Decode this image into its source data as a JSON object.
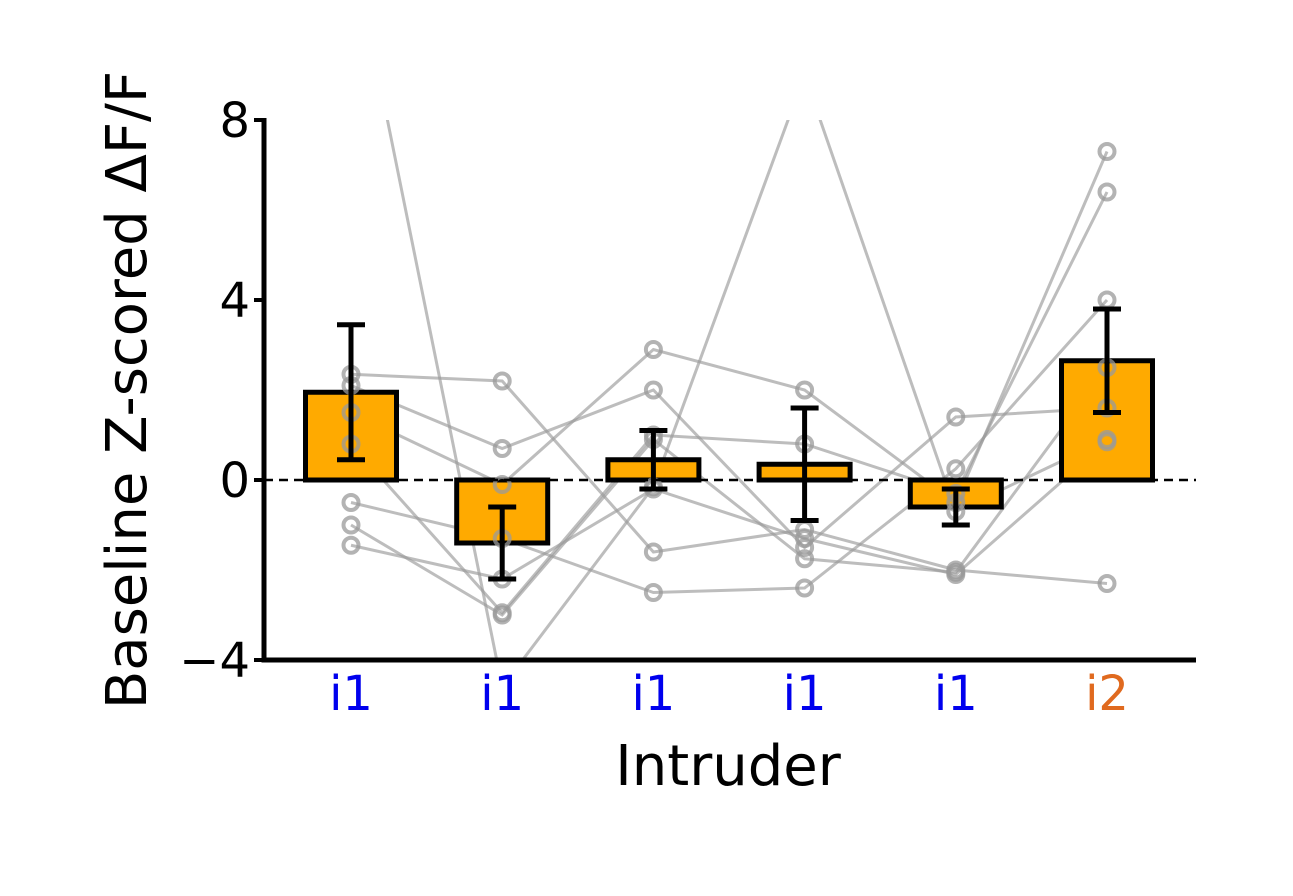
{
  "chart_data": {
    "type": "bar",
    "xlabel": "Intruder",
    "ylabel": "Baseline Z-scored ΔF/F",
    "ylim": [
      -4,
      8
    ],
    "yticks": [
      {
        "value": -4,
        "label": "−4"
      },
      {
        "value": 0,
        "label": "0"
      },
      {
        "value": 4,
        "label": "4"
      },
      {
        "value": 8,
        "label": "8"
      }
    ],
    "categories": [
      "i1",
      "i1",
      "i1",
      "i1",
      "i1",
      "i2"
    ],
    "category_colors": [
      "#0000ee",
      "#0000ee",
      "#0000ee",
      "#0000ee",
      "#0000ee",
      "#e06a1f"
    ],
    "bar_color": "#ffaa00",
    "bar_edge_color": "#000000",
    "means": [
      1.95,
      -1.4,
      0.45,
      0.35,
      -0.6,
      2.65
    ],
    "errors": [
      1.5,
      0.8,
      0.65,
      1.25,
      0.4,
      1.15
    ],
    "zero_line": "dashed",
    "subject_line_color": "#999999",
    "subjects": [
      [
        2.35,
        2.2,
        -1.6,
        -1.1,
        -2.0,
        -2.3
      ],
      [
        2.1,
        0.7,
        2.0,
        -1.5,
        1.4,
        1.6
      ],
      [
        1.5,
        -0.1,
        2.9,
        2.0,
        -0.5,
        7.3
      ],
      [
        0.8,
        -2.95,
        1.0,
        0.8,
        -0.3,
        6.4
      ],
      [
        -0.5,
        -1.3,
        -2.5,
        -2.4,
        0.25,
        4.0
      ],
      [
        -1.0,
        -3.0,
        0.9,
        -1.75,
        -2.05,
        2.5
      ],
      [
        -1.45,
        -2.2,
        -0.2,
        -1.3,
        -2.1,
        0.85
      ],
      [
        12.0,
        -4.6,
        -0.15,
        9.0,
        -0.7,
        0.9
      ]
    ]
  }
}
